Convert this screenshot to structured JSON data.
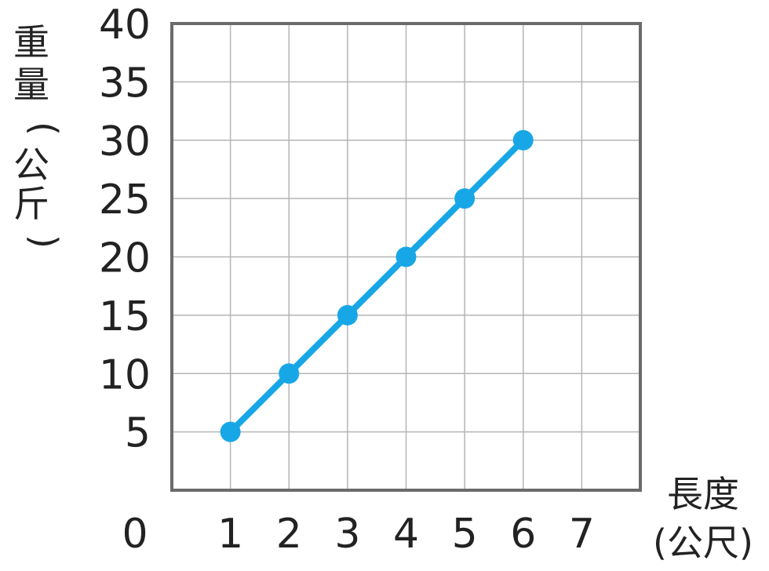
{
  "chart_data": {
    "type": "line",
    "xlabel_line1": "長度",
    "xlabel_line2": "(公尺)",
    "ylabel_chars": [
      "重",
      "量",
      "(",
      "公",
      "斤",
      ")"
    ],
    "origin_label": "0",
    "x_ticks": [
      1,
      2,
      3,
      4,
      5,
      6,
      7
    ],
    "x_tick_labels": [
      "1",
      "2",
      "3",
      "4",
      "5",
      "6",
      "7"
    ],
    "y_ticks": [
      5,
      10,
      15,
      20,
      25,
      30,
      35,
      40
    ],
    "y_tick_labels": [
      "5",
      "10",
      "15",
      "20",
      "25",
      "30",
      "35",
      "40"
    ],
    "xlim": [
      0,
      8
    ],
    "ylim": [
      0,
      40
    ],
    "grid": true,
    "series": [
      {
        "x": [
          1,
          2,
          3,
          4,
          5,
          6
        ],
        "values": [
          5,
          10,
          15,
          20,
          25,
          30
        ],
        "color": "#18a7e6"
      }
    ]
  }
}
